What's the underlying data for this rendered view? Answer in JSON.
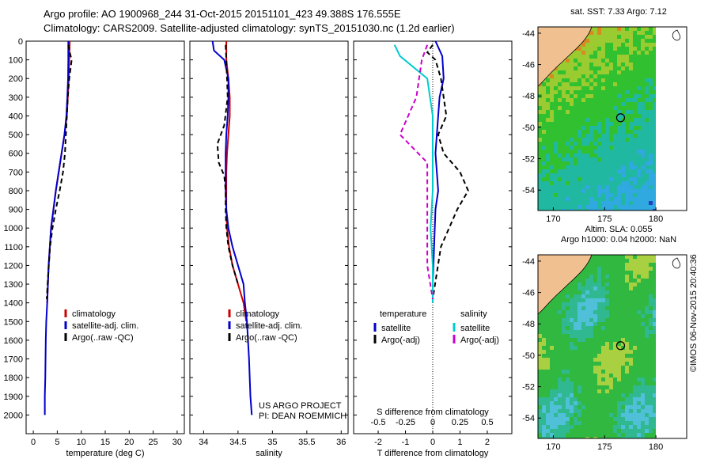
{
  "header": {
    "line1": "Argo profile: AO 1900968_244 31-Oct-2015 20151101_423 49.388S 176.555E",
    "line2": "Climatology: CARS2009. Satellite-adjusted climatology: synTS_20151030.nc (1.2d earlier)"
  },
  "chart_data": [
    {
      "type": "line",
      "xlabel": "temperature (deg C)",
      "ylabel": "",
      "xlim": [
        -1.5,
        31.5
      ],
      "ylim": [
        2100,
        0
      ],
      "xticks": [
        0,
        5,
        10,
        15,
        20,
        25,
        30
      ],
      "yticks": [
        0,
        100,
        200,
        300,
        400,
        500,
        600,
        700,
        800,
        900,
        1000,
        1100,
        1200,
        1300,
        1400,
        1500,
        1600,
        1700,
        1800,
        1900,
        2000
      ],
      "legend": [
        "climatology",
        "satellite-adj. clim.",
        "Argo(..raw -QC)"
      ],
      "series": [
        {
          "name": "climatology",
          "color": "#cc0000",
          "x": [
            7.6,
            7.5,
            7.4,
            7.2,
            7.0,
            6.5,
            5.9,
            5.3,
            4.7,
            4.2,
            3.7,
            3.2,
            2.9
          ],
          "y": [
            0,
            100,
            200,
            300,
            400,
            500,
            600,
            700,
            800,
            900,
            1000,
            1200,
            1400
          ]
        },
        {
          "name": "satellite-adj. clim.",
          "color": "#0000cc",
          "x": [
            7.3,
            7.3,
            7.25,
            7.1,
            6.9,
            6.5,
            5.9,
            5.3,
            4.7,
            4.2,
            3.7,
            3.2,
            2.9,
            2.7,
            2.6,
            2.5,
            2.4,
            2.4
          ],
          "y": [
            0,
            100,
            200,
            300,
            400,
            500,
            600,
            700,
            800,
            900,
            1000,
            1200,
            1400,
            1500,
            1600,
            1800,
            1900,
            2000
          ]
        },
        {
          "name": "Argo(..raw -QC)",
          "color": "#000000",
          "dash": true,
          "x": [
            7.3,
            7.6,
            8.0,
            7.5,
            7.2,
            7.0,
            6.8,
            6.6,
            6.2,
            5.5,
            4.7,
            4.0,
            3.5,
            3.1,
            2.8
          ],
          "y": [
            20,
            60,
            100,
            200,
            300,
            400,
            500,
            600,
            700,
            800,
            900,
            1000,
            1100,
            1250,
            1380
          ]
        }
      ]
    },
    {
      "type": "line",
      "xlabel": "salinity",
      "ylabel": "",
      "xlim": [
        33.8,
        36.1
      ],
      "ylim": [
        2100,
        0
      ],
      "xticks": [
        34,
        34.5,
        35,
        35.5,
        36
      ],
      "legend": [
        "climatology",
        "satellite-adj. clim.",
        "Argo(..raw -QC)"
      ],
      "annotation": [
        "US ARGO PROJECT",
        "PI: DEAN ROEMMICH"
      ],
      "series": [
        {
          "name": "climatology",
          "color": "#cc0000",
          "x": [
            34.33,
            34.33,
            34.36,
            34.38,
            34.38,
            34.36,
            34.34,
            34.33,
            34.33,
            34.33,
            34.34,
            34.37,
            34.42,
            34.5,
            34.58,
            34.62
          ],
          "y": [
            0,
            100,
            200,
            300,
            400,
            500,
            600,
            700,
            800,
            900,
            1000,
            1100,
            1200,
            1300,
            1400,
            1500
          ]
        },
        {
          "name": "satellite-adj. clim.",
          "color": "#0000cc",
          "x": [
            34.13,
            34.15,
            34.3,
            34.36,
            34.36,
            34.35,
            34.33,
            34.32,
            34.32,
            34.32,
            34.33,
            34.36,
            34.42,
            34.5,
            34.58,
            34.6,
            34.63,
            34.66,
            34.68,
            34.7
          ],
          "y": [
            0,
            50,
            100,
            200,
            300,
            400,
            500,
            600,
            700,
            800,
            900,
            1000,
            1100,
            1200,
            1300,
            1400,
            1500,
            1700,
            1900,
            2000
          ]
        },
        {
          "name": "Argo(..raw -QC)",
          "color": "#000000",
          "dash": true,
          "x": [
            34.32,
            34.33,
            34.34,
            34.35,
            34.3,
            34.2,
            34.22,
            34.3,
            34.32,
            34.32,
            34.33,
            34.36,
            34.42,
            34.5
          ],
          "y": [
            20,
            100,
            200,
            300,
            450,
            550,
            650,
            720,
            800,
            900,
            1000,
            1100,
            1200,
            1300
          ]
        }
      ]
    },
    {
      "type": "line",
      "xlabel": "T difference from climatology",
      "ylabel": "",
      "xlim": [
        -2.9,
        2.9
      ],
      "ylim": [
        2100,
        0
      ],
      "xticks": [
        -2,
        -1,
        0,
        1,
        2
      ],
      "top_axis": {
        "label": "S difference from climatology",
        "ticks": [
          -0.5,
          -0.25,
          0,
          0.25,
          0.5
        ]
      },
      "legend_title_left": "temperature",
      "legend_title_right": "salinity",
      "legend": [
        "satellite",
        "Argo(-adj)",
        "satellite",
        "Argo(-adj)"
      ],
      "series": [
        {
          "name": "temperature satellite",
          "color": "#0000cc",
          "x": [
            0.1,
            0.35,
            0.4,
            0.25,
            0.2,
            0.15,
            0.1,
            0.15,
            0.2,
            0.1,
            0.05,
            0.0,
            0.0
          ],
          "y": [
            0,
            80,
            200,
            300,
            400,
            500,
            600,
            700,
            800,
            900,
            1100,
            1300,
            1400
          ]
        },
        {
          "name": "temperature Argo(-adj)",
          "color": "#000000",
          "dash": true,
          "x": [
            0,
            -0.2,
            0.1,
            0.3,
            0.5,
            0.2,
            0.4,
            1.0,
            1.3,
            0.9,
            0.6,
            0.3,
            0.0
          ],
          "y": [
            20,
            60,
            100,
            200,
            400,
            500,
            600,
            700,
            800,
            900,
            1000,
            1100,
            1380
          ]
        },
        {
          "name": "salinity satellite",
          "color": "#00cccc",
          "x": [
            -0.35,
            -0.3,
            -0.05,
            0.0,
            0.0,
            0.0,
            -0.02,
            0.0,
            0.0
          ],
          "y": [
            20,
            80,
            200,
            400,
            600,
            800,
            1000,
            1200,
            1400
          ]
        },
        {
          "name": "salinity Argo(-adj)",
          "color": "#cc00cc",
          "dash": true,
          "x": [
            -0.05,
            -0.1,
            -0.15,
            -0.3,
            -0.05,
            -0.05,
            -0.05,
            -0.05,
            0.0
          ],
          "y": [
            20,
            100,
            300,
            500,
            650,
            800,
            1000,
            1200,
            1380
          ]
        }
      ]
    },
    {
      "type": "heatmap",
      "title": "sat. SST: 7.33  Argo: 7.12",
      "xlim": [
        168.5,
        183
      ],
      "ylim": [
        -55.3,
        -43.6
      ],
      "xticks": [
        170,
        175,
        180
      ],
      "yticks": [
        -44,
        -46,
        -48,
        -50,
        -52,
        -54
      ],
      "marker": {
        "lon": 176.555,
        "lat": -49.388
      }
    },
    {
      "type": "heatmap",
      "title": [
        "Altim. SLA: 0.055",
        "Argo h1000: 0.04 h2000: NaN"
      ],
      "xlim": [
        168.5,
        183
      ],
      "ylim": [
        -55.3,
        -43.6
      ],
      "xticks": [
        170,
        175,
        180
      ],
      "yticks": [
        -44,
        -46,
        -48,
        -50,
        -52,
        -54
      ],
      "marker": {
        "lon": 176.555,
        "lat": -49.388
      }
    }
  ],
  "footer": {
    "imos": "©IMOS 06-Nov-2015 20:40:36"
  },
  "colors": {
    "climatology": "#cc0000",
    "satellite": "#0000cc",
    "argo": "#000000",
    "sal_satellite": "#00cccc",
    "sal_argo": "#cc00cc",
    "land": "#f0c090"
  }
}
